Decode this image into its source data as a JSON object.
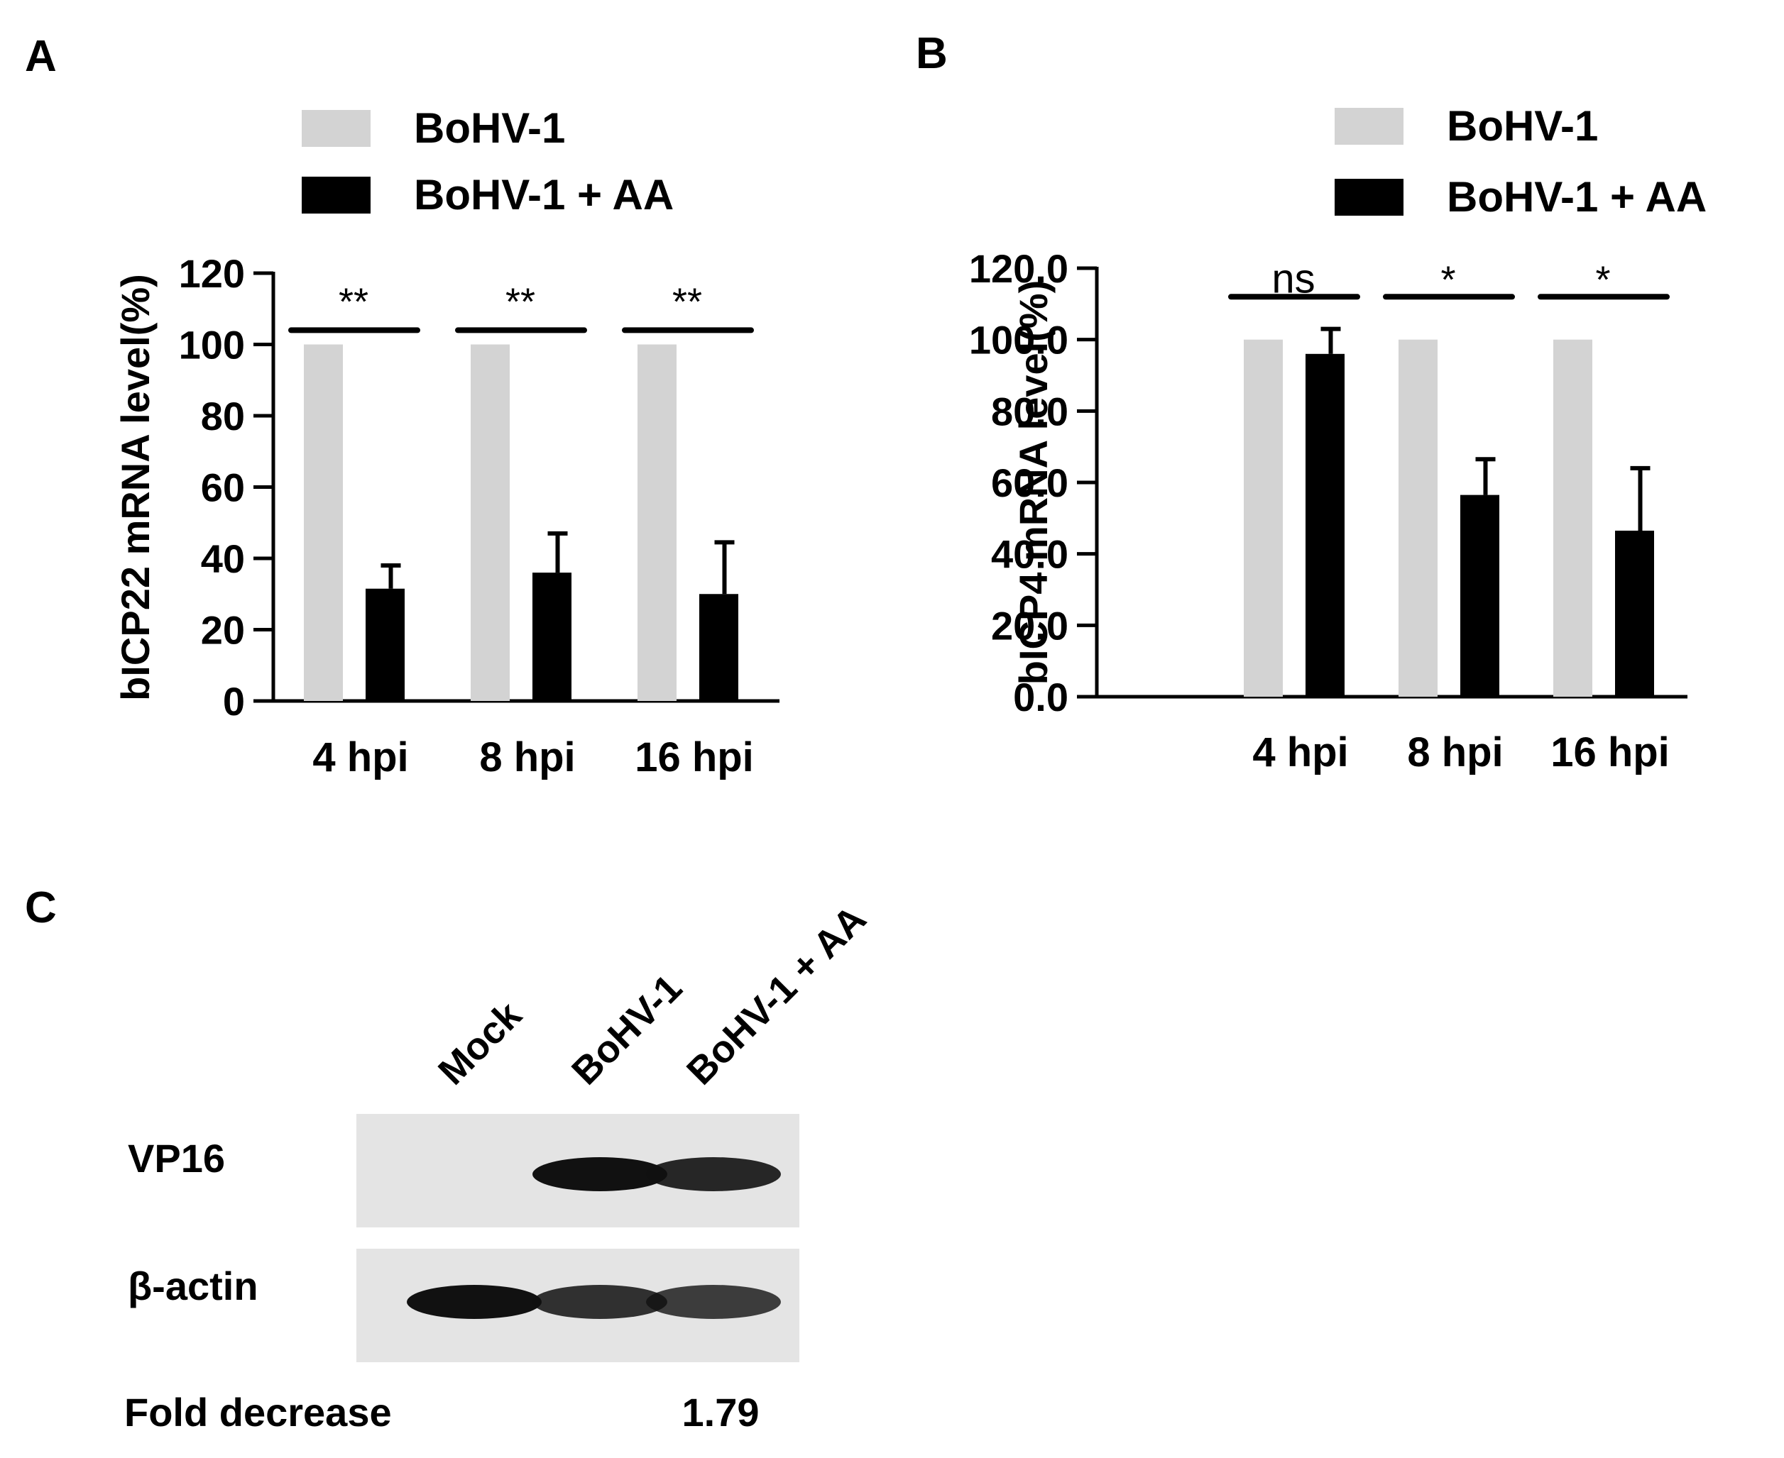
{
  "colors": {
    "control": "#d3d3d3",
    "treated": "#000000",
    "axis": "#000000"
  },
  "chart_data": [
    {
      "panel_label": "A",
      "type": "bar",
      "ylabel": "bICP22 mRNA level(%)",
      "ylim": [
        0,
        120
      ],
      "yticks": [
        0,
        20,
        40,
        60,
        80,
        100,
        120
      ],
      "ytick_labels": [
        "0",
        "20",
        "40",
        "60",
        "80",
        "100",
        "120"
      ],
      "categories": [
        "4 hpi",
        "8 hpi",
        "16 hpi"
      ],
      "legend": "top",
      "series": [
        {
          "name": "BoHV-1",
          "values": [
            100,
            100,
            100
          ],
          "errors": [
            0,
            0,
            0
          ]
        },
        {
          "name": "BoHV-1 + AA",
          "values": [
            31.5,
            36,
            30
          ],
          "errors": [
            6.5,
            11,
            14.5
          ]
        }
      ],
      "significance": [
        {
          "category": "4 hpi",
          "label": "**",
          "y": 104
        },
        {
          "category": "8 hpi",
          "label": "**",
          "y": 104
        },
        {
          "category": "16 hpi",
          "label": "**",
          "y": 104
        }
      ]
    },
    {
      "panel_label": "B",
      "type": "bar",
      "ylabel": "bICP4 mRNA level(%)",
      "ylim": [
        0,
        120
      ],
      "yticks": [
        0,
        20,
        40,
        60,
        80,
        100,
        120
      ],
      "ytick_labels": [
        "0.0",
        "20.0",
        "40.0",
        "60.0",
        "80.0",
        "100.0",
        "120.0"
      ],
      "categories": [
        "4 hpi",
        "8 hpi",
        "16 hpi"
      ],
      "legend": "top",
      "series": [
        {
          "name": "BoHV-1",
          "values": [
            100,
            100,
            100
          ],
          "errors": [
            0,
            0,
            0
          ]
        },
        {
          "name": "BoHV-1 + AA",
          "values": [
            96,
            56.5,
            46.5
          ],
          "errors": [
            7,
            10,
            17.5
          ]
        }
      ],
      "significance": [
        {
          "category": "4 hpi",
          "label": "ns",
          "y": 112
        },
        {
          "category": "8 hpi",
          "label": "*",
          "y": 112
        },
        {
          "category": "16 hpi",
          "label": "*",
          "y": 112
        }
      ]
    }
  ],
  "blot": {
    "panel_label": "C",
    "lanes": [
      "Mock",
      "BoHV-1",
      "BoHV-1 + AA"
    ],
    "rows": [
      {
        "label": "VP16",
        "band_intensity": [
          0,
          1,
          0.9
        ]
      },
      {
        "label": "β-actin",
        "band_intensity": [
          1,
          0.85,
          0.8
        ]
      }
    ],
    "fold_label": "Fold decrease",
    "fold_values": [
      "",
      "",
      "1.79"
    ]
  }
}
